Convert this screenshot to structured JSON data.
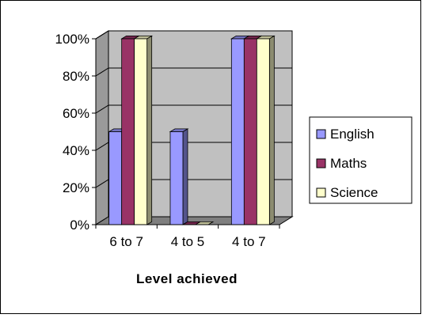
{
  "chart_data": {
    "type": "bar",
    "categories": [
      "6 to 7",
      "4 to 5",
      "4 to 7"
    ],
    "series": [
      {
        "name": "English",
        "values": [
          50,
          50,
          100
        ],
        "color": "#9999ff"
      },
      {
        "name": "Maths",
        "values": [
          100,
          0,
          100
        ],
        "color": "#993366"
      },
      {
        "name": "Science",
        "values": [
          100,
          0,
          100
        ],
        "color": "#ffffcc"
      }
    ],
    "title": "",
    "xlabel": "Level achieved",
    "ylabel": "",
    "ylim": [
      0,
      100
    ],
    "yticks": [
      "0%",
      "20%",
      "40%",
      "60%",
      "80%",
      "100%"
    ],
    "grid": true,
    "legend_position": "right",
    "plot_background": "#c0c0c0",
    "three_d": true
  }
}
